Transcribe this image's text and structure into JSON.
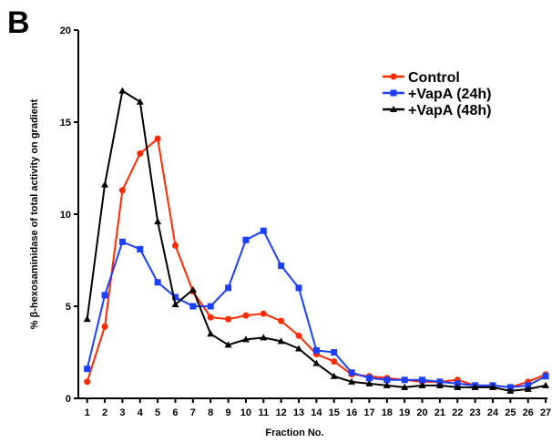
{
  "panel_label": "B",
  "chart_data": {
    "type": "line",
    "xlabel": "Fraction No.",
    "ylabel_prefix": "% ",
    "ylabel_symbol": "β",
    "ylabel_suffix": "-hexosaminidase of total activity on gradient",
    "x": [
      1,
      2,
      3,
      4,
      5,
      6,
      7,
      8,
      9,
      10,
      11,
      12,
      13,
      14,
      15,
      16,
      17,
      18,
      19,
      20,
      21,
      22,
      23,
      24,
      25,
      26,
      27
    ],
    "x_tick_labels": [
      "1",
      "2",
      "3",
      "4",
      "5",
      "6",
      "7",
      "8",
      "9",
      "10",
      "11",
      "12",
      "13",
      "14",
      "15",
      "16",
      "17",
      "18",
      "19",
      "20",
      "21",
      "22",
      "23",
      "24",
      "25",
      "26",
      "27"
    ],
    "xlim": [
      0.5,
      27.1
    ],
    "ylim": [
      0,
      20
    ],
    "y_ticks": [
      0,
      5,
      10,
      15,
      20
    ],
    "y_tick_labels": [
      "0",
      "5",
      "10",
      "15",
      "20"
    ],
    "legend_position": "top-right",
    "grid": false,
    "series": [
      {
        "name": "Control",
        "color": "#ff2a00",
        "marker": "circle",
        "values": [
          0.9,
          3.9,
          11.3,
          13.3,
          14.1,
          8.3,
          5.8,
          4.4,
          4.3,
          4.5,
          4.6,
          4.2,
          3.4,
          2.4,
          2.0,
          1.3,
          1.2,
          1.1,
          1.0,
          0.9,
          0.9,
          1.0,
          0.7,
          0.7,
          0.6,
          0.9,
          1.3
        ]
      },
      {
        "name": "+VapA (24h)",
        "color": "#1a3fff",
        "marker": "square",
        "values": [
          1.6,
          5.6,
          8.5,
          8.1,
          6.3,
          5.5,
          5.0,
          5.0,
          6.0,
          8.6,
          9.1,
          7.2,
          6.0,
          2.6,
          2.5,
          1.4,
          1.1,
          1.0,
          1.0,
          1.0,
          0.9,
          0.8,
          0.7,
          0.7,
          0.6,
          0.7,
          1.2
        ]
      },
      {
        "name": "+VapA (48h)",
        "color": "#000000",
        "marker": "triangle",
        "values": [
          4.3,
          11.6,
          16.7,
          16.1,
          9.6,
          5.1,
          5.9,
          3.5,
          2.9,
          3.2,
          3.3,
          3.1,
          2.7,
          1.9,
          1.2,
          0.9,
          0.8,
          0.7,
          0.6,
          0.7,
          0.7,
          0.6,
          0.6,
          0.6,
          0.4,
          0.5,
          0.7
        ]
      }
    ]
  }
}
